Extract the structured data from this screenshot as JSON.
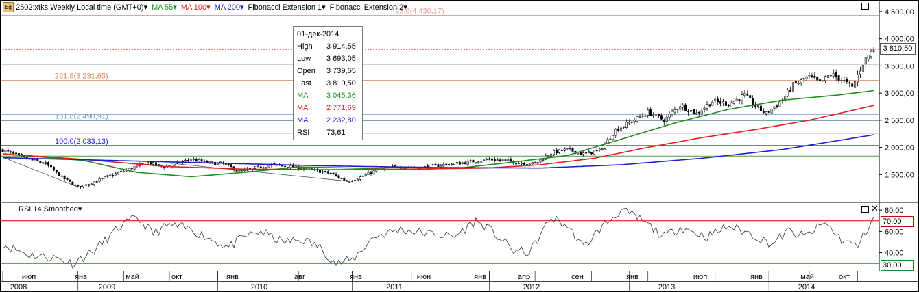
{
  "header": {
    "symbol_icon": "Eq",
    "title": "2502:xtks Weekly Local time (GMT+0)",
    "ma55": "MA 55",
    "ma100": "MA 100",
    "ma200": "MA 200",
    "fib1": "Fibonacci Extension 1",
    "fib2": "Fibonacci Extension 2",
    "dropdown_glyph": "▾",
    "colors": {
      "ma55": "#1e8c1e",
      "ma100": "#e02020",
      "ma200": "#1f1fd0",
      "text": "#000000"
    }
  },
  "tooltip": {
    "date": "01-дек-2014",
    "rows": [
      {
        "label": "High",
        "value": "3 914,55",
        "color": "#000000"
      },
      {
        "label": "Low",
        "value": "3 693,05",
        "color": "#000000"
      },
      {
        "label": "Open",
        "value": "3 739,55",
        "color": "#000000"
      },
      {
        "label": "Last",
        "value": "3 810,50",
        "color": "#000000"
      },
      {
        "label": "MA",
        "value": "3 045,36",
        "color": "#1e8c1e"
      },
      {
        "label": "MA",
        "value": "2 771,69",
        "color": "#e02020"
      },
      {
        "label": "MA",
        "value": "2 232,80",
        "color": "#1f1fd0"
      },
      {
        "label": "RSI",
        "value": "73,61",
        "color": "#000000"
      }
    ]
  },
  "rsi_panel": {
    "title": "RSI 14 Smoothed",
    "upper_label": "70,00",
    "lower_label": "30,00"
  },
  "last_price_label": "3 810,50",
  "chart_data": {
    "type": "candlestick",
    "price_axis": {
      "ticks": [
        1500,
        2000,
        2500,
        3000,
        3500,
        4000,
        4500
      ],
      "tick_labels": [
        "1 500,00",
        "2 000,00",
        "2 500,00",
        "3 000,00",
        "3 500,00",
        "4 000,00",
        "4 500,00"
      ],
      "range": [
        1000,
        4650
      ]
    },
    "rsi_axis": {
      "ticks": [
        40,
        60,
        80
      ],
      "tick_labels": [
        "40,00",
        "60,00",
        "80,00"
      ],
      "range": [
        25,
        82
      ]
    },
    "time_axis": {
      "months": [
        "июп",
        "янв",
        "май",
        "окт",
        "янв",
        "авг",
        "янв",
        "июн",
        "янв",
        "апр",
        "сен",
        "янв",
        "июп",
        "янв",
        "май",
        "окт"
      ],
      "years": [
        "2008",
        "2009",
        "2010",
        "2011",
        "2012",
        "2013",
        "2014"
      ]
    },
    "fib_levels": [
      {
        "label": "423.6(4 430,17)",
        "value": 4430.17,
        "color": "#e8a0a0"
      },
      {
        "label": "261.8(3 231,65)",
        "value": 3231.65,
        "color": "#d2895a"
      },
      {
        "label": "161.8(2 490,91)",
        "value": 2490.91,
        "color": "#7aa0b0"
      },
      {
        "label": "100.0(2 033,13)",
        "value": 2033.13,
        "color": "#1f1fd0"
      }
    ],
    "extra_levels": [
      {
        "value": 3810.5,
        "color": "#cc0000",
        "style": "dotted"
      },
      {
        "value": 3530,
        "color": "#8aa8a8",
        "style": "solid"
      },
      {
        "value": 2610,
        "color": "#5a80d0",
        "style": "solid"
      },
      {
        "value": 2260,
        "color": "#d27ad2",
        "style": "solid"
      },
      {
        "value": 1840,
        "color": "#4a9a4a",
        "style": "solid"
      }
    ],
    "close_anchors": [
      [
        0,
        1950
      ],
      [
        8,
        1800
      ],
      [
        16,
        1700
      ],
      [
        22,
        1450
      ],
      [
        28,
        1270
      ],
      [
        32,
        1330
      ],
      [
        40,
        1480
      ],
      [
        48,
        1620
      ],
      [
        54,
        1720
      ],
      [
        60,
        1640
      ],
      [
        66,
        1720
      ],
      [
        70,
        1780
      ],
      [
        76,
        1720
      ],
      [
        82,
        1700
      ],
      [
        88,
        1560
      ],
      [
        94,
        1620
      ],
      [
        100,
        1680
      ],
      [
        108,
        1640
      ],
      [
        116,
        1580
      ],
      [
        122,
        1520
      ],
      [
        128,
        1380
      ],
      [
        132,
        1430
      ],
      [
        140,
        1600
      ],
      [
        148,
        1650
      ],
      [
        156,
        1630
      ],
      [
        164,
        1680
      ],
      [
        172,
        1720
      ],
      [
        180,
        1780
      ],
      [
        186,
        1760
      ],
      [
        192,
        1720
      ],
      [
        198,
        1700
      ],
      [
        204,
        1900
      ],
      [
        210,
        1960
      ],
      [
        216,
        1880
      ],
      [
        222,
        1940
      ],
      [
        228,
        2320
      ],
      [
        234,
        2480
      ],
      [
        240,
        2650
      ],
      [
        246,
        2500
      ],
      [
        252,
        2780
      ],
      [
        258,
        2620
      ],
      [
        264,
        2850
      ],
      [
        270,
        2800
      ],
      [
        276,
        2960
      ],
      [
        280,
        2760
      ],
      [
        284,
        2620
      ],
      [
        290,
        2880
      ],
      [
        294,
        3140
      ],
      [
        300,
        3300
      ],
      [
        304,
        3180
      ],
      [
        308,
        3350
      ],
      [
        312,
        3250
      ],
      [
        316,
        3100
      ],
      [
        320,
        3550
      ],
      [
        322,
        3700
      ],
      [
        324,
        3810
      ]
    ],
    "ma_series": [
      {
        "name": "MA",
        "period": 55,
        "color": "#1e8c1e",
        "last": 3045.36,
        "anchors": [
          [
            0,
            1880
          ],
          [
            30,
            1760
          ],
          [
            50,
            1540
          ],
          [
            70,
            1460
          ],
          [
            90,
            1540
          ],
          [
            110,
            1640
          ],
          [
            130,
            1620
          ],
          [
            150,
            1590
          ],
          [
            170,
            1620
          ],
          [
            190,
            1730
          ],
          [
            210,
            1850
          ],
          [
            230,
            2150
          ],
          [
            250,
            2450
          ],
          [
            270,
            2700
          ],
          [
            290,
            2870
          ],
          [
            310,
            2960
          ],
          [
            324,
            3045
          ]
        ]
      },
      {
        "name": "MA",
        "period": 100,
        "color": "#e02020",
        "last": 2771.69,
        "anchors": [
          [
            0,
            1880
          ],
          [
            30,
            1780
          ],
          [
            60,
            1650
          ],
          [
            90,
            1600
          ],
          [
            120,
            1590
          ],
          [
            150,
            1600
          ],
          [
            180,
            1620
          ],
          [
            200,
            1680
          ],
          [
            220,
            1800
          ],
          [
            240,
            2000
          ],
          [
            260,
            2180
          ],
          [
            280,
            2330
          ],
          [
            300,
            2500
          ],
          [
            324,
            2772
          ]
        ]
      },
      {
        "name": "MA",
        "period": 200,
        "color": "#1f1fd0",
        "last": 2232.8,
        "anchors": [
          [
            0,
            1810
          ],
          [
            40,
            1760
          ],
          [
            80,
            1710
          ],
          [
            120,
            1660
          ],
          [
            160,
            1630
          ],
          [
            200,
            1620
          ],
          [
            230,
            1680
          ],
          [
            260,
            1800
          ],
          [
            290,
            1960
          ],
          [
            324,
            2233
          ]
        ]
      }
    ],
    "rsi_series": {
      "name": "RSI 14 Smoothed",
      "last": 73.61,
      "anchors": [
        [
          0,
          48
        ],
        [
          10,
          38
        ],
        [
          20,
          35
        ],
        [
          26,
          30
        ],
        [
          34,
          42
        ],
        [
          44,
          65
        ],
        [
          50,
          73
        ],
        [
          56,
          58
        ],
        [
          62,
          66
        ],
        [
          70,
          62
        ],
        [
          78,
          52
        ],
        [
          84,
          45
        ],
        [
          90,
          55
        ],
        [
          96,
          60
        ],
        [
          104,
          50
        ],
        [
          112,
          52
        ],
        [
          118,
          45
        ],
        [
          124,
          30
        ],
        [
          130,
          33
        ],
        [
          138,
          55
        ],
        [
          148,
          62
        ],
        [
          158,
          58
        ],
        [
          168,
          55
        ],
        [
          176,
          70
        ],
        [
          182,
          60
        ],
        [
          190,
          42
        ],
        [
          196,
          40
        ],
        [
          204,
          73
        ],
        [
          210,
          65
        ],
        [
          216,
          45
        ],
        [
          222,
          62
        ],
        [
          230,
          80
        ],
        [
          238,
          70
        ],
        [
          246,
          55
        ],
        [
          252,
          64
        ],
        [
          262,
          55
        ],
        [
          270,
          65
        ],
        [
          278,
          58
        ],
        [
          286,
          48
        ],
        [
          292,
          60
        ],
        [
          298,
          55
        ],
        [
          306,
          68
        ],
        [
          312,
          52
        ],
        [
          318,
          46
        ],
        [
          324,
          73.6
        ]
      ]
    },
    "rsi_levels": [
      {
        "value": 70,
        "color": "#cc0000"
      },
      {
        "value": 30,
        "color": "#1e8c1e"
      }
    ],
    "fib_trend_lines": [
      [
        [
          0,
          1820
        ],
        [
          28,
          1270
        ]
      ],
      [
        [
          62,
          1710
        ],
        [
          128,
          1380
        ]
      ]
    ],
    "weeks": 325
  }
}
